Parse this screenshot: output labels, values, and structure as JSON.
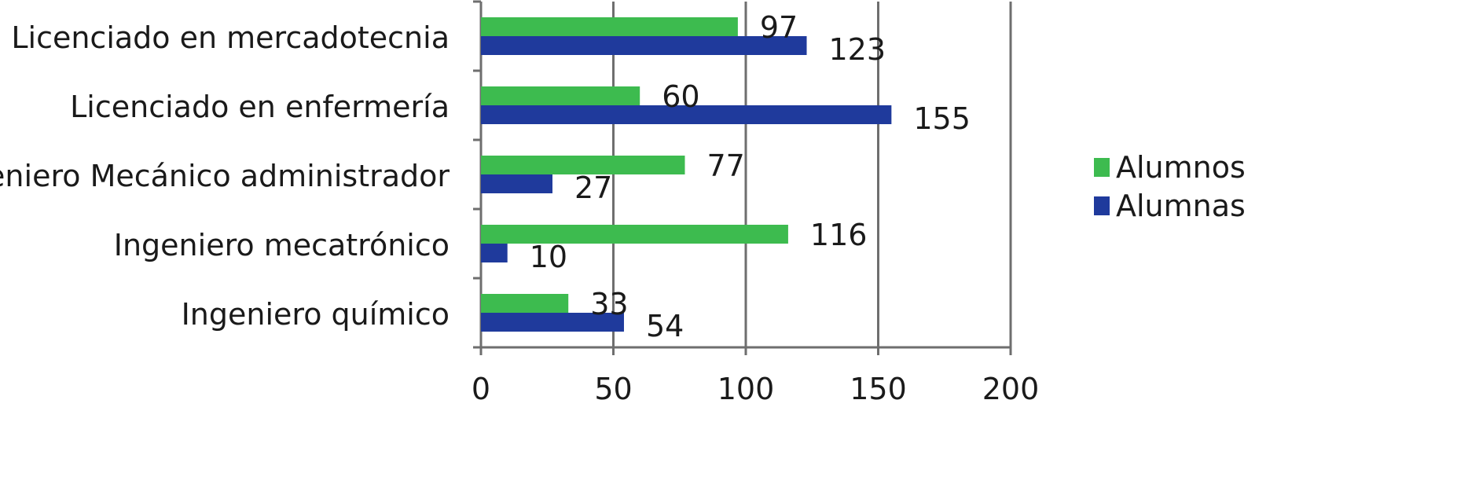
{
  "chart_data": {
    "type": "bar",
    "orientation": "horizontal",
    "categories": [
      "Licenciado en mercadotecnia",
      "Licenciado en enfermería",
      "Ingeniero Mecánico administrador",
      "Ingeniero mecatrónico",
      "Ingeniero químico"
    ],
    "series": [
      {
        "name": "Alumnos",
        "color": "#3dbb4f",
        "values": [
          97,
          60,
          77,
          116,
          33
        ]
      },
      {
        "name": "Alumnas",
        "color": "#1f3a9c",
        "values": [
          123,
          155,
          27,
          10,
          54
        ]
      }
    ],
    "xlim": [
      0,
      200
    ],
    "xticks": [
      "0",
      "50",
      "100",
      "150",
      "200"
    ],
    "grid": true,
    "legend_position": "right"
  }
}
